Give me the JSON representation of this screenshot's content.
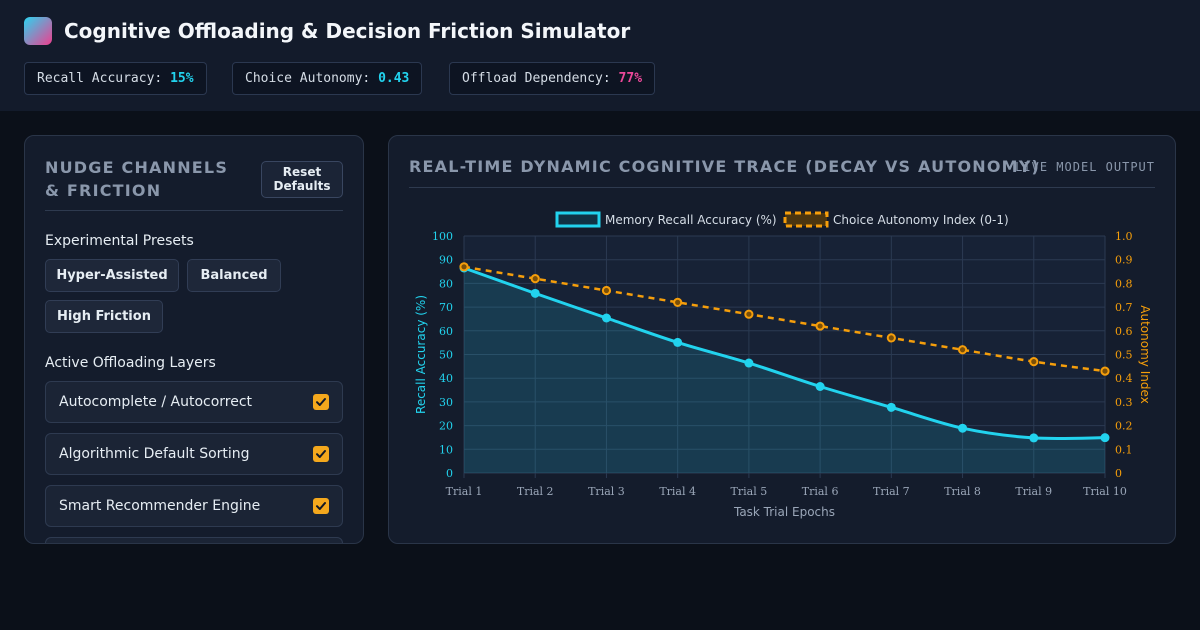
{
  "header": {
    "title": "Cognitive Offloading & Decision Friction Simulator",
    "stats": [
      {
        "label": "Recall Accuracy:",
        "value": "15%",
        "color": "#22d3ee"
      },
      {
        "label": "Choice Autonomy:",
        "value": "0.43",
        "color": "#22d3ee"
      },
      {
        "label": "Offload Dependency:",
        "value": "77%",
        "color": "#ec4899"
      }
    ]
  },
  "controls": {
    "title": "NUDGE CHANNELS & FRICTION",
    "reset_label": "Reset Defaults",
    "presets_label": "Experimental Presets",
    "presets": [
      "Hyper-Assisted",
      "Balanced",
      "High Friction"
    ],
    "layers_label": "Active Offloading Layers",
    "layers": [
      {
        "label": "Autocomplete / Autocorrect",
        "checked": true
      },
      {
        "label": "Algorithmic Default Sorting",
        "checked": true
      },
      {
        "label": "Smart Recommender Engine",
        "checked": true
      }
    ]
  },
  "chart": {
    "title": "REAL-TIME DYNAMIC COGNITIVE TRACE (DECAY VS AUTONOMY)",
    "live_label": "LIVE MODEL OUTPUT"
  },
  "chart_data": {
    "type": "line",
    "x": [
      "Trial 1",
      "Trial 2",
      "Trial 3",
      "Trial 4",
      "Trial 5",
      "Trial 6",
      "Trial 7",
      "Trial 8",
      "Trial 9",
      "Trial 10"
    ],
    "xlabel": "Task Trial Epochs",
    "y_left": {
      "label": "Recall Accuracy (%)",
      "lim": [
        0,
        100
      ],
      "ticks": [
        "0",
        "10",
        "20",
        "30",
        "40",
        "50",
        "60",
        "70",
        "80",
        "90",
        "100"
      ]
    },
    "y_right": {
      "label": "Autonomy Index",
      "lim": [
        0,
        1
      ],
      "ticks": [
        "0",
        "0.1",
        "0.2",
        "0.3",
        "0.4",
        "0.5",
        "0.6",
        "0.7",
        "0.8",
        "0.9",
        "1.0"
      ]
    },
    "series": [
      {
        "name": "Memory Recall Accuracy (%)",
        "axis": "left",
        "color": "#22d3ee",
        "style": "solid",
        "fill": true,
        "values": [
          86.5,
          75.8,
          65.4,
          55.1,
          46.4,
          36.5,
          27.7,
          18.9,
          14.8,
          14.9
        ]
      },
      {
        "name": "Choice Autonomy Index (0-1)",
        "axis": "right",
        "color": "#f59e0b",
        "style": "dashed",
        "fill": false,
        "values": [
          0.87,
          0.82,
          0.77,
          0.72,
          0.67,
          0.62,
          0.57,
          0.52,
          0.47,
          0.43
        ]
      }
    ],
    "legend": "top-center",
    "grid": true
  }
}
